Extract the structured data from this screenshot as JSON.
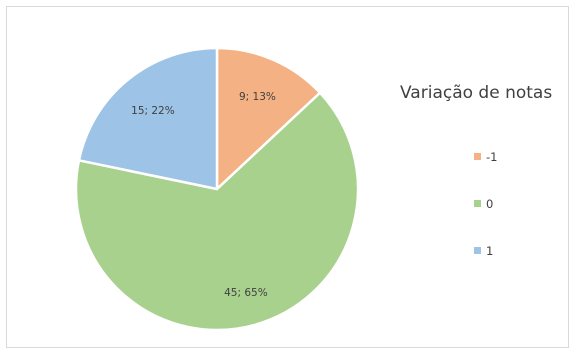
{
  "chart_data": {
    "type": "pie",
    "categories": [
      "-1",
      "0",
      "1"
    ],
    "values": [
      9,
      45,
      15
    ],
    "percentages": [
      "13%",
      "65%",
      "22%"
    ],
    "colors": [
      "#f4b183",
      "#a9d18e",
      "#9dc3e6"
    ],
    "data_labels": [
      "9; 13%",
      "45; 65%",
      "15; 22%"
    ],
    "legend_title": "Variação de notas",
    "legend_position": "right"
  }
}
